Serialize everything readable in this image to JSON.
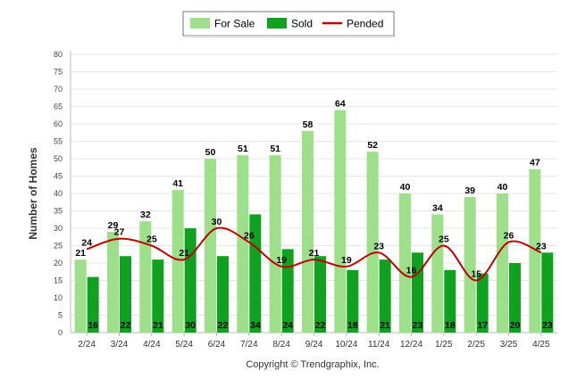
{
  "chart_data": {
    "type": "bar",
    "title": "",
    "xlabel": "",
    "ylabel": "Number of Homes",
    "ylim": [
      0,
      80
    ],
    "y_ticks": [
      0,
      5,
      10,
      15,
      20,
      25,
      30,
      35,
      40,
      45,
      50,
      55,
      60,
      65,
      70,
      75,
      80
    ],
    "grid": true,
    "legend_position": "top-center",
    "categories": [
      "2/24",
      "3/24",
      "4/24",
      "5/24",
      "6/24",
      "7/24",
      "8/24",
      "9/24",
      "10/24",
      "11/24",
      "12/24",
      "1/25",
      "2/25",
      "3/25",
      "4/25"
    ],
    "series": [
      {
        "name": "For Sale",
        "kind": "bar",
        "color": "#9ee08a",
        "values": [
          21,
          29,
          32,
          41,
          50,
          51,
          51,
          58,
          64,
          52,
          40,
          34,
          39,
          40,
          47
        ]
      },
      {
        "name": "Sold",
        "kind": "bar",
        "color": "#0fa11f",
        "values": [
          16,
          22,
          21,
          30,
          22,
          34,
          24,
          22,
          18,
          21,
          23,
          18,
          17,
          20,
          23
        ]
      },
      {
        "name": "Pended",
        "kind": "line",
        "color": "#c00000",
        "values": [
          24,
          27,
          25,
          21,
          30,
          26,
          19,
          21,
          19,
          23,
          16,
          25,
          15,
          26,
          23
        ]
      }
    ],
    "credit": "Copyright © Trendgraphix, Inc."
  }
}
